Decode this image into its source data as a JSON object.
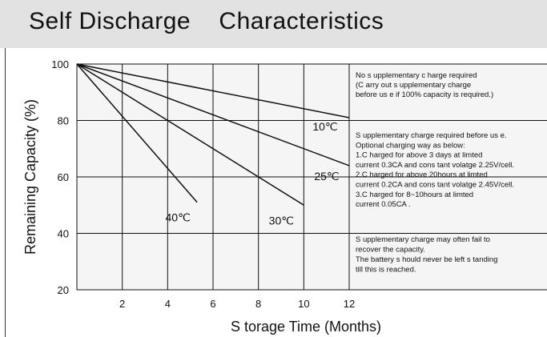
{
  "title": "Self Discharge    Characteristics",
  "chart_data": {
    "type": "line",
    "xlabel": "S torage Time (Months)",
    "ylabel": "Remaining Capacity (%)",
    "xlim": [
      0,
      12
    ],
    "ylim": [
      20,
      100
    ],
    "x_ticks": [
      "2",
      "4",
      "6",
      "8",
      "10",
      "12"
    ],
    "y_ticks": [
      "100",
      "80",
      "60",
      "40",
      "20"
    ],
    "grid": true,
    "series": [
      {
        "name": "10℃",
        "x": [
          0,
          12
        ],
        "y": [
          100,
          81
        ]
      },
      {
        "name": "25℃",
        "x": [
          0,
          12
        ],
        "y": [
          100,
          64
        ]
      },
      {
        "name": "30℃",
        "x": [
          0,
          10
        ],
        "y": [
          100,
          50
        ]
      },
      {
        "name": "40℃",
        "x": [
          0,
          5.3
        ],
        "y": [
          100,
          51
        ]
      }
    ],
    "annotations": [
      {
        "band": [
          80,
          100
        ],
        "lines": [
          "No s upplementary c harge required",
          "(C arry out s upplementary charge",
          "before us e if 100% capacity is required.)"
        ]
      },
      {
        "band": [
          40,
          80
        ],
        "lines": [
          "S upplementary charge required before us e.",
          "Optional charging way as below:",
          "1.C harged for above 3 days at limted",
          "current 0.3CA and cons tant volatge 2.25V/cell.",
          "2.C harged for above 20hours at limted",
          "current 0.2CA and cons tant volatge 2.45V/cell.",
          "3.C harged for 8~10hours at limted",
          "current 0.05CA ."
        ]
      },
      {
        "band": [
          20,
          40
        ],
        "lines": [
          "S upplementary charge may often fail to",
          "recover the capacity.",
          "The battery s hould never be left s tanding",
          "till this is reached."
        ]
      }
    ]
  }
}
